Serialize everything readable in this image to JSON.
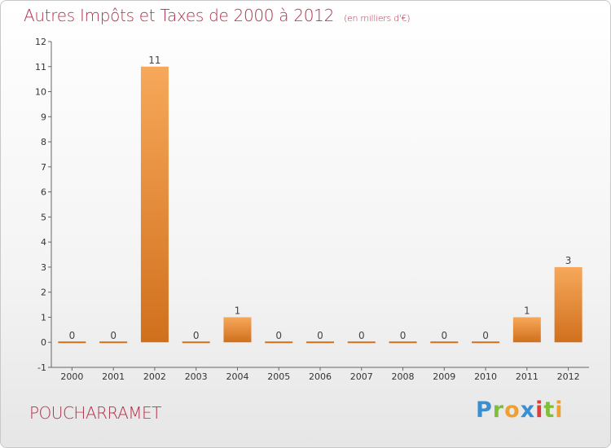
{
  "title": "Autres Impôts et Taxes de 2000 à 2012",
  "subtitle": "(en milliers d'€)",
  "commune": "POUCHARRAMET",
  "logo_text": [
    "P",
    "r",
    "o",
    "x",
    "i",
    "t",
    "i"
  ],
  "colors": {
    "bar_top": "#f7a85a",
    "bar_bottom": "#d0701d",
    "title": "#b0324a"
  },
  "chart_data": {
    "type": "bar",
    "title": "Autres Impôts et Taxes de 2000 à 2012",
    "subtitle": "(en milliers d'€)",
    "categories": [
      "2000",
      "2001",
      "2002",
      "2003",
      "2004",
      "2005",
      "2006",
      "2007",
      "2008",
      "2009",
      "2010",
      "2011",
      "2012"
    ],
    "values": [
      0,
      0,
      11,
      0,
      1,
      0,
      0,
      0,
      0,
      0,
      0,
      1,
      3
    ],
    "ylim": [
      -1,
      12
    ],
    "yticks": [
      -1,
      0,
      1,
      2,
      3,
      4,
      5,
      6,
      7,
      8,
      9,
      10,
      11,
      12
    ],
    "grid": false,
    "xlabel": "",
    "ylabel": ""
  }
}
